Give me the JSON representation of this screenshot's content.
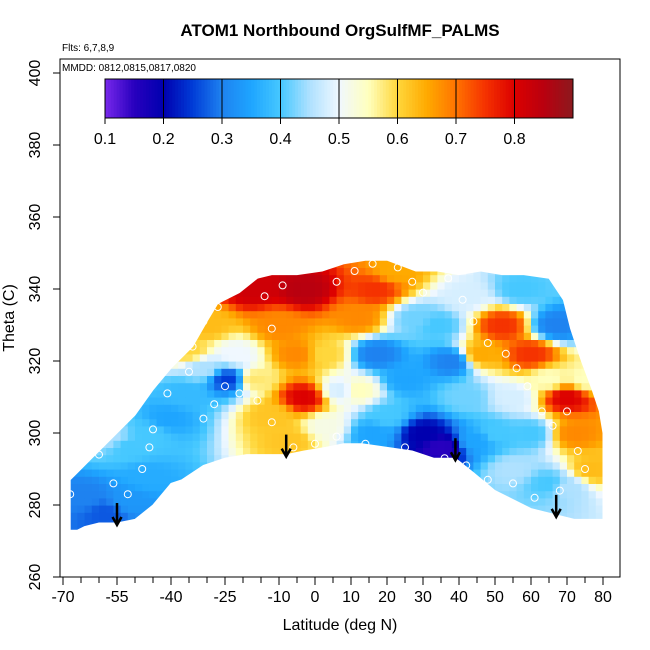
{
  "chart_data": {
    "type": "heatmap",
    "title": "ATOM1 Northbound OrgSulfMF_PALMS",
    "annotations": [
      "Flts: 6,7,8,9",
      "MMDD: 0812,0815,0817,0820"
    ],
    "xlabel": "Latitude (deg N)",
    "ylabel": "Theta (C)",
    "xlim": [
      -70,
      80
    ],
    "ylim": [
      260,
      400
    ],
    "x_ticks": [
      -70,
      -55,
      -40,
      -25,
      -10,
      0,
      10,
      20,
      30,
      40,
      50,
      60,
      70,
      80
    ],
    "x_tick_labels": [
      "-70",
      "-55",
      "-40",
      "-25",
      "-10",
      "0",
      "10",
      "20",
      "30",
      "40",
      "50",
      "60",
      "70",
      "80"
    ],
    "y_ticks": [
      260,
      280,
      300,
      320,
      340,
      360,
      380,
      400
    ],
    "y_tick_labels": [
      "260",
      "280",
      "300",
      "320",
      "340",
      "360",
      "380",
      "400"
    ],
    "colorbar": {
      "range": [
        0.1,
        0.9
      ],
      "ticks": [
        0.1,
        0.2,
        0.3,
        0.4,
        0.5,
        0.6,
        0.7,
        0.8
      ],
      "tick_labels": [
        "0.1",
        "0.2",
        "0.3",
        "0.4",
        "0.5",
        "0.6",
        "0.7",
        "0.8"
      ],
      "placement": "top-inside"
    },
    "boundary": {
      "top": [
        [
          -68,
          287
        ],
        [
          -66,
          289
        ],
        [
          -62,
          293
        ],
        [
          -56,
          299
        ],
        [
          -50,
          305
        ],
        [
          -45,
          312
        ],
        [
          -40,
          318
        ],
        [
          -34,
          324
        ],
        [
          -30,
          331
        ],
        [
          -27,
          336
        ],
        [
          -21,
          339
        ],
        [
          -16,
          343
        ],
        [
          -12,
          344
        ],
        [
          -5,
          344
        ],
        [
          2,
          345
        ],
        [
          8,
          347
        ],
        [
          14,
          348
        ],
        [
          20,
          348
        ],
        [
          28,
          345
        ],
        [
          34,
          345
        ],
        [
          40,
          344
        ],
        [
          46,
          345
        ],
        [
          52,
          344
        ],
        [
          58,
          344
        ],
        [
          65,
          343
        ],
        [
          69,
          337
        ],
        [
          71,
          329
        ],
        [
          74,
          320
        ],
        [
          77,
          312
        ],
        [
          79,
          306
        ],
        [
          80,
          300
        ]
      ],
      "bottom": [
        [
          80,
          276
        ],
        [
          72,
          276
        ],
        [
          60,
          279
        ],
        [
          50,
          284
        ],
        [
          44,
          289
        ],
        [
          39,
          293
        ],
        [
          33,
          293
        ],
        [
          27,
          295
        ],
        [
          20,
          296
        ],
        [
          13,
          297
        ],
        [
          8,
          297
        ],
        [
          3,
          296
        ],
        [
          -3,
          295
        ],
        [
          -8,
          294
        ],
        [
          -13,
          294
        ],
        [
          -19,
          294
        ],
        [
          -25,
          293
        ],
        [
          -31,
          291
        ],
        [
          -37,
          287
        ],
        [
          -40,
          286
        ],
        [
          -45,
          280
        ],
        [
          -50,
          276
        ],
        [
          -55,
          275
        ],
        [
          -60,
          275
        ],
        [
          -64,
          274
        ],
        [
          -66,
          273
        ],
        [
          -68,
          273
        ]
      ]
    },
    "field_centers": [
      {
        "x": -64,
        "y": 282,
        "v": 0.3
      },
      {
        "x": -58,
        "y": 278,
        "v": 0.27
      },
      {
        "x": -52,
        "y": 281,
        "v": 0.33
      },
      {
        "x": -47,
        "y": 288,
        "v": 0.36
      },
      {
        "x": -52,
        "y": 296,
        "v": 0.4
      },
      {
        "x": -57,
        "y": 299,
        "v": 0.45
      },
      {
        "x": -46,
        "y": 300,
        "v": 0.4
      },
      {
        "x": -41,
        "y": 304,
        "v": 0.35
      },
      {
        "x": -36,
        "y": 311,
        "v": 0.38
      },
      {
        "x": -31,
        "y": 318,
        "v": 0.45
      },
      {
        "x": -35,
        "y": 323,
        "v": 0.6
      },
      {
        "x": -30,
        "y": 330,
        "v": 0.63
      },
      {
        "x": -24,
        "y": 315,
        "v": 0.25
      },
      {
        "x": -22,
        "y": 322,
        "v": 0.5
      },
      {
        "x": -17,
        "y": 315,
        "v": 0.58
      },
      {
        "x": -12,
        "y": 305,
        "v": 0.62
      },
      {
        "x": -7,
        "y": 298,
        "v": 0.62
      },
      {
        "x": -10,
        "y": 330,
        "v": 0.68
      },
      {
        "x": -17,
        "y": 340,
        "v": 0.82
      },
      {
        "x": -3,
        "y": 340,
        "v": 0.85
      },
      {
        "x": -3,
        "y": 310,
        "v": 0.8
      },
      {
        "x": -5,
        "y": 322,
        "v": 0.68
      },
      {
        "x": 3,
        "y": 322,
        "v": 0.6
      },
      {
        "x": 7,
        "y": 312,
        "v": 0.48
      },
      {
        "x": 3,
        "y": 302,
        "v": 0.52
      },
      {
        "x": 12,
        "y": 332,
        "v": 0.68
      },
      {
        "x": 17,
        "y": 340,
        "v": 0.75
      },
      {
        "x": 22,
        "y": 345,
        "v": 0.65
      },
      {
        "x": 17,
        "y": 322,
        "v": 0.3
      },
      {
        "x": 12,
        "y": 312,
        "v": 0.55
      },
      {
        "x": 20,
        "y": 305,
        "v": 0.4
      },
      {
        "x": 16,
        "y": 300,
        "v": 0.35
      },
      {
        "x": 28,
        "y": 332,
        "v": 0.42
      },
      {
        "x": 25,
        "y": 315,
        "v": 0.35
      },
      {
        "x": 30,
        "y": 300,
        "v": 0.2
      },
      {
        "x": 35,
        "y": 296,
        "v": 0.15
      },
      {
        "x": 34,
        "y": 330,
        "v": 0.4
      },
      {
        "x": 38,
        "y": 320,
        "v": 0.3
      },
      {
        "x": 42,
        "y": 310,
        "v": 0.42
      },
      {
        "x": 45,
        "y": 298,
        "v": 0.35
      },
      {
        "x": 42,
        "y": 338,
        "v": 0.48
      },
      {
        "x": 46,
        "y": 322,
        "v": 0.65
      },
      {
        "x": 52,
        "y": 330,
        "v": 0.75
      },
      {
        "x": 57,
        "y": 340,
        "v": 0.4
      },
      {
        "x": 60,
        "y": 322,
        "v": 0.75
      },
      {
        "x": 55,
        "y": 310,
        "v": 0.48
      },
      {
        "x": 50,
        "y": 300,
        "v": 0.4
      },
      {
        "x": 60,
        "y": 300,
        "v": 0.4
      },
      {
        "x": 65,
        "y": 315,
        "v": 0.55
      },
      {
        "x": 70,
        "y": 310,
        "v": 0.8
      },
      {
        "x": 72,
        "y": 300,
        "v": 0.68
      },
      {
        "x": 67,
        "y": 330,
        "v": 0.3
      },
      {
        "x": 75,
        "y": 315,
        "v": 0.55
      },
      {
        "x": 77,
        "y": 290,
        "v": 0.63
      },
      {
        "x": 70,
        "y": 285,
        "v": 0.45
      },
      {
        "x": 65,
        "y": 286,
        "v": 0.4
      },
      {
        "x": 55,
        "y": 290,
        "v": 0.45
      }
    ],
    "sample_points": [
      [
        -68,
        283
      ],
      [
        -60,
        294
      ],
      [
        -56,
        286
      ],
      [
        -52,
        283
      ],
      [
        -48,
        290
      ],
      [
        -46,
        296
      ],
      [
        -45,
        301
      ],
      [
        -41,
        311
      ],
      [
        -35,
        317
      ],
      [
        -34,
        324
      ],
      [
        -31,
        331
      ],
      [
        -27,
        335
      ],
      [
        -22,
        342
      ],
      [
        -17,
        345
      ],
      [
        -14,
        338
      ],
      [
        -12,
        329
      ],
      [
        -9,
        341
      ],
      [
        -5,
        346
      ],
      [
        -2,
        349
      ],
      [
        2,
        347
      ],
      [
        6,
        342
      ],
      [
        11,
        345
      ],
      [
        16,
        347
      ],
      [
        23,
        346
      ],
      [
        27,
        342
      ],
      [
        30,
        339
      ],
      [
        37,
        343
      ],
      [
        41,
        337
      ],
      [
        44,
        331
      ],
      [
        48,
        325
      ],
      [
        53,
        322
      ],
      [
        56,
        318
      ],
      [
        59,
        313
      ],
      [
        63,
        306
      ],
      [
        66,
        302
      ],
      [
        70,
        306
      ],
      [
        73,
        295
      ],
      [
        75,
        290
      ],
      [
        68,
        284
      ],
      [
        61,
        282
      ],
      [
        55,
        286
      ],
      [
        48,
        287
      ],
      [
        42,
        291
      ],
      [
        36,
        293
      ],
      [
        30,
        291
      ],
      [
        25,
        296
      ],
      [
        19,
        295
      ],
      [
        14,
        297
      ],
      [
        6,
        299
      ],
      [
        0,
        297
      ],
      [
        -6,
        296
      ],
      [
        -12,
        303
      ],
      [
        -16,
        309
      ],
      [
        -21,
        311
      ],
      [
        -25,
        313
      ],
      [
        -28,
        308
      ],
      [
        -31,
        304
      ]
    ],
    "arrows": [
      -55,
      -8,
      39,
      67
    ]
  }
}
